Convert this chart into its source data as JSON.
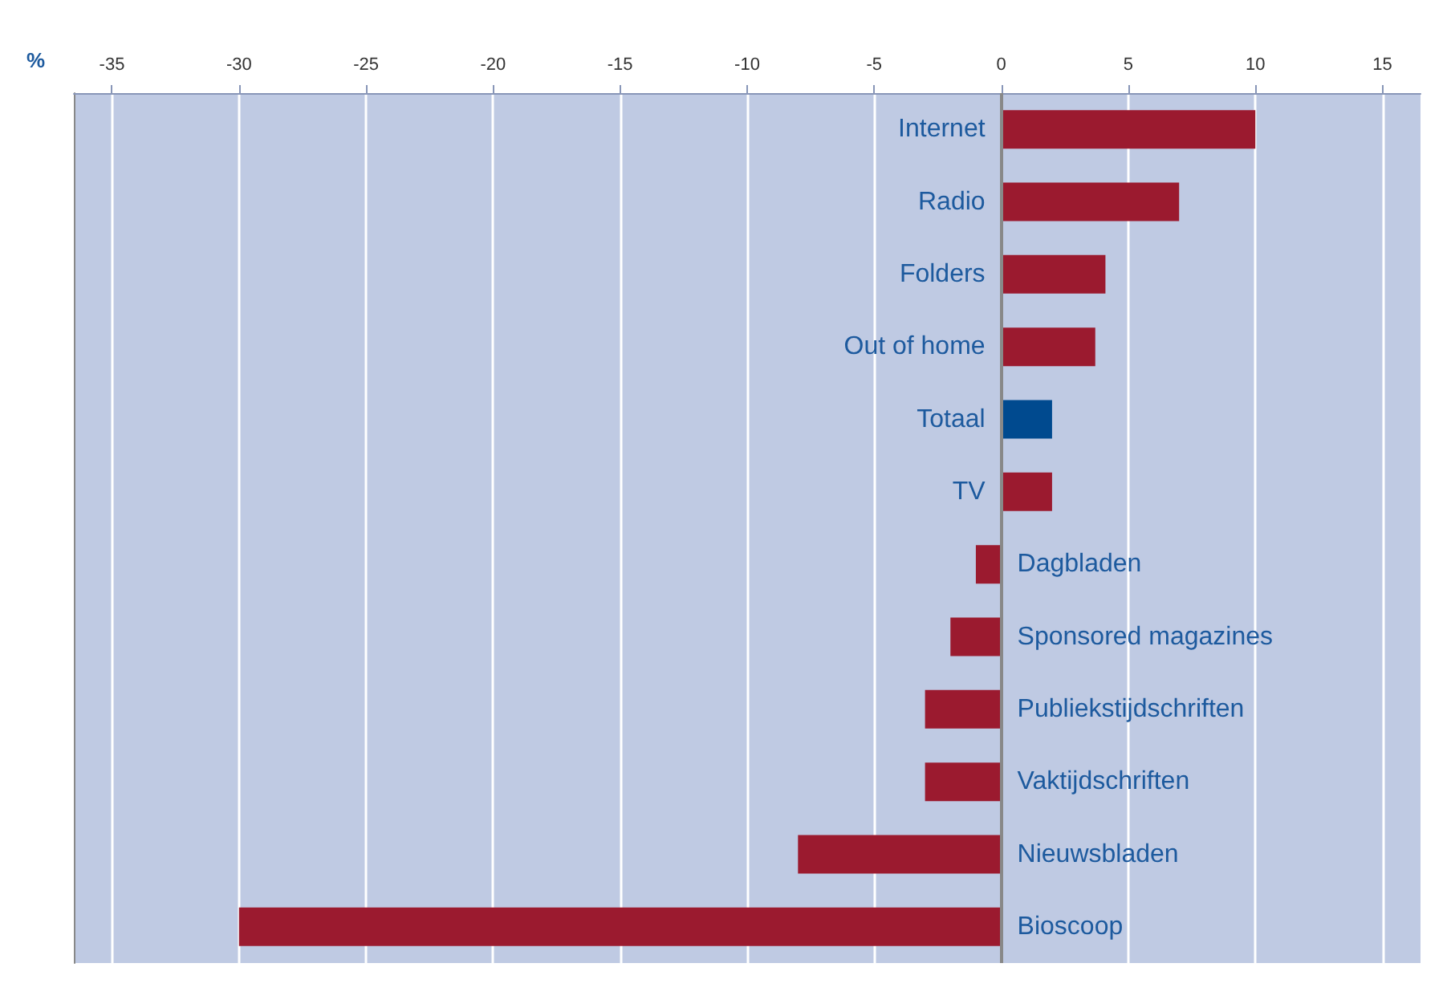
{
  "chart_data": {
    "type": "bar",
    "orientation": "horizontal",
    "xlabel": "%",
    "categories": [
      "Internet",
      "Radio",
      "Folders",
      "Out of home",
      "Totaal",
      "TV",
      "Dagbladen",
      "Sponsored magazines",
      "Publiekstijdschriften",
      "Vaktijdschriften",
      "Nieuwsbladen",
      "Bioscoop"
    ],
    "values": [
      10,
      7,
      4.1,
      3.7,
      2,
      2,
      -1,
      -2,
      -3,
      -3,
      -8,
      -30
    ],
    "colors": [
      "#9b1a2f",
      "#9b1a2f",
      "#9b1a2f",
      "#9b1a2f",
      "#004a8f",
      "#9b1a2f",
      "#9b1a2f",
      "#9b1a2f",
      "#9b1a2f",
      "#9b1a2f",
      "#9b1a2f",
      "#9b1a2f"
    ],
    "xlim": [
      -36.5,
      16.5
    ],
    "xticks": [
      -35,
      -30,
      -25,
      -20,
      -15,
      -10,
      -5,
      0,
      5,
      10,
      15
    ],
    "grid": "x"
  }
}
